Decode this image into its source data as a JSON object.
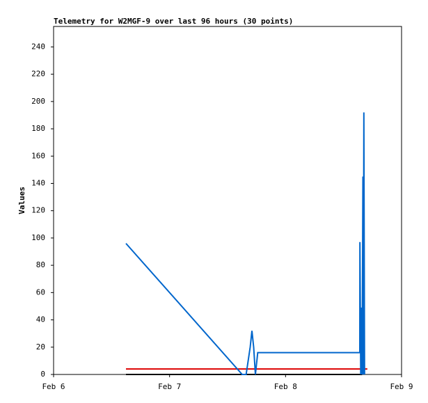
{
  "chart_data": {
    "type": "line",
    "title": "Telemetry for W2MGF-9 over last 96 hours (30 points)",
    "y_label": "Values",
    "xlim": [
      6,
      9
    ],
    "xticks": [
      {
        "value": 6,
        "label": "Feb 6"
      },
      {
        "value": 7,
        "label": "Feb 7"
      },
      {
        "value": 8,
        "label": "Feb 8"
      },
      {
        "value": 9,
        "label": "Feb 9"
      }
    ],
    "ylim": [
      0,
      255
    ],
    "yticks": [
      0,
      20,
      40,
      60,
      80,
      100,
      120,
      140,
      160,
      180,
      200,
      220,
      240
    ],
    "grid": false,
    "series": [
      {
        "color": "#000000",
        "x": [
          6.624,
          8.66
        ],
        "values": [
          0,
          0
        ]
      },
      {
        "color": "#dd0000",
        "x": [
          6.624,
          8.705
        ],
        "values": [
          4,
          4
        ]
      },
      {
        "color": "#0066cc",
        "x": [
          6.624,
          7.626,
          7.66,
          7.695,
          7.71,
          7.725,
          7.74,
          7.76,
          8.64,
          8.641,
          8.648,
          8.655,
          8.66,
          8.667,
          8.671,
          8.675,
          8.681
        ],
        "values": [
          96,
          0,
          0,
          20,
          32,
          20,
          0,
          16,
          16,
          97,
          0,
          49,
          0,
          145,
          0,
          192,
          0
        ]
      }
    ]
  }
}
